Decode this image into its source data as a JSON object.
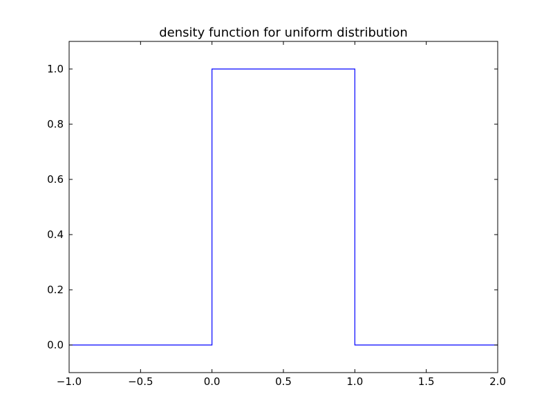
{
  "chart_data": {
    "type": "line",
    "title": "density function for uniform distribution",
    "xlabel": "",
    "ylabel": "",
    "xlim": [
      -1.0,
      2.0
    ],
    "ylim": [
      -0.1,
      1.1
    ],
    "grid": false,
    "x_ticks": [
      -1.0,
      -0.5,
      0.0,
      0.5,
      1.0,
      1.5,
      2.0
    ],
    "x_tick_labels": [
      "−1.0",
      "−0.5",
      "0.0",
      "0.5",
      "1.0",
      "1.5",
      "2.0"
    ],
    "y_ticks": [
      0.0,
      0.2,
      0.4,
      0.6,
      0.8,
      1.0
    ],
    "y_tick_labels": [
      "0.0",
      "0.2",
      "0.4",
      "0.6",
      "0.8",
      "1.0"
    ],
    "series": [
      {
        "color": "#0000ff",
        "x": [
          -1.0,
          0.0,
          0.0,
          1.0,
          1.0,
          2.0
        ],
        "y": [
          0.0,
          0.0,
          1.0,
          1.0,
          0.0,
          0.0
        ]
      }
    ]
  }
}
